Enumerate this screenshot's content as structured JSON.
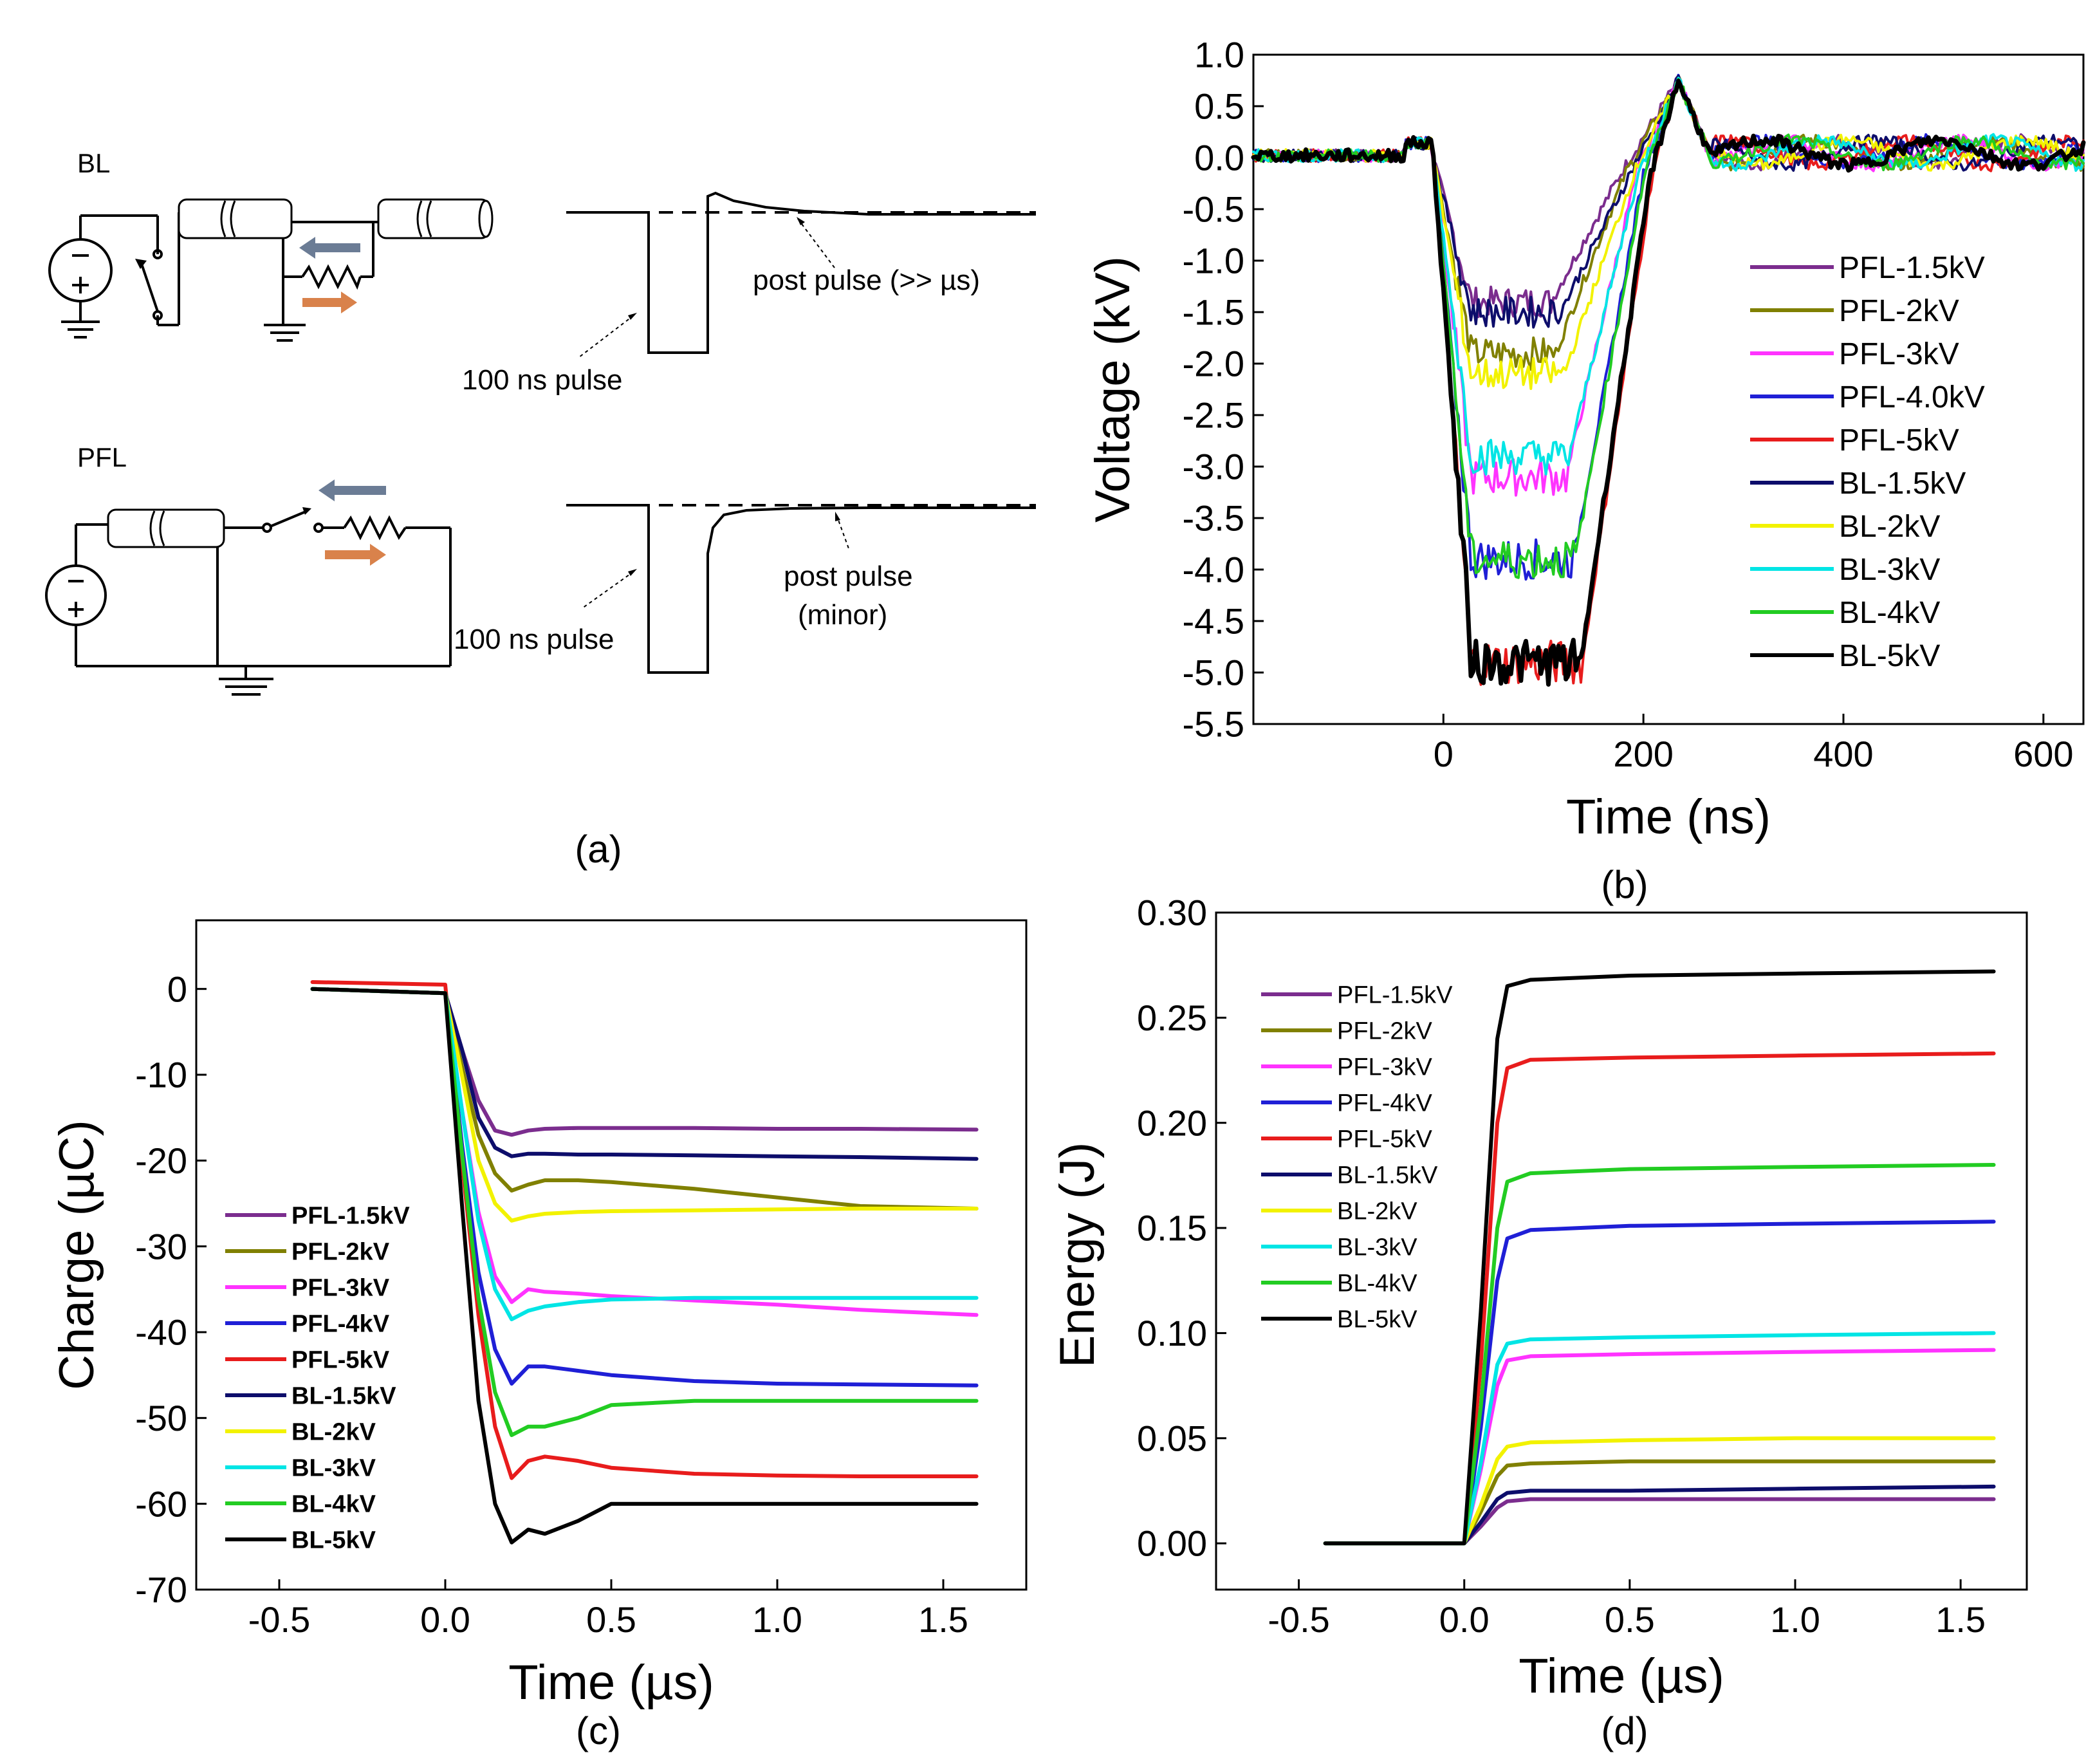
{
  "panel_a": {
    "label": "(a)",
    "bl_title": "BL",
    "pfl_title": "PFL",
    "bl_pulse_label": "100 ns pulse",
    "bl_post_label": "post pulse (>> µs)",
    "pfl_pulse_label": "100 ns pulse",
    "pfl_post_label_1": "post pulse",
    "pfl_post_label_2": "(minor)",
    "arrow_colors": {
      "grey": "#6b7c95",
      "orange": "#d9824b"
    }
  },
  "chart_data": [
    {
      "panel": "(b)",
      "type": "line",
      "title": "",
      "xlabel": "Time (ns)",
      "ylabel": "Voltage (kV)",
      "xlim": [
        -190,
        640
      ],
      "ylim": [
        -5.5,
        1.0
      ],
      "xticks": [
        "0",
        "200",
        "400",
        "600"
      ],
      "yticks": [
        "1.0",
        "0.5",
        "0.0",
        "-0.5",
        "-1.0",
        "-1.5",
        "-2.0",
        "-2.5",
        "-3.0",
        "-3.5",
        "-4.0",
        "-4.5",
        "-5.0",
        "-5.5"
      ],
      "legend_position": "center-right",
      "series": [
        {
          "name": "PFL-1.5kV",
          "color": "#7b2d8e",
          "plateau": -1.4
        },
        {
          "name": "PFL-2kV",
          "color": "#808000",
          "plateau": -1.9
        },
        {
          "name": "PFL-3kV",
          "color": "#ff33ff",
          "plateau": -3.1
        },
        {
          "name": "PFL-4.0kV",
          "color": "#1f1fd6",
          "plateau": -3.9
        },
        {
          "name": "PFL-5kV",
          "color": "#e81c1c",
          "plateau": -4.9
        },
        {
          "name": "BL-1.5kV",
          "color": "#0d0d6b",
          "plateau": -1.5
        },
        {
          "name": "BL-2kV",
          "color": "#f2f200",
          "plateau": -2.1
        },
        {
          "name": "BL-3kV",
          "color": "#00e5e5",
          "plateau": -2.9
        },
        {
          "name": "BL-4kV",
          "color": "#22cc22",
          "plateau": -3.9
        },
        {
          "name": "BL-5kV",
          "color": "#000000",
          "plateau": -4.9
        }
      ]
    },
    {
      "panel": "(c)",
      "type": "line",
      "title": "",
      "xlabel": "Time (µs)",
      "ylabel": "Charge (µC)",
      "xlim": [
        -0.75,
        1.75
      ],
      "ylim": [
        -70,
        8
      ],
      "xticks": [
        "-0.5",
        "0.0",
        "0.5",
        "1.0",
        "1.5"
      ],
      "yticks": [
        "0",
        "-10",
        "-20",
        "-30",
        "-40",
        "-50",
        "-60",
        "-70"
      ],
      "legend_position": "center-left",
      "x": [
        -0.4,
        0.0,
        0.05,
        0.1,
        0.15,
        0.2,
        0.25,
        0.3,
        0.4,
        0.5,
        0.75,
        1.0,
        1.25,
        1.6
      ],
      "series": [
        {
          "name": "PFL-1.5kV",
          "color": "#7b2d8e",
          "values": [
            0,
            -0.5,
            -7,
            -13,
            -16.5,
            -17,
            -16.5,
            -16.3,
            -16.2,
            -16.2,
            -16.2,
            -16.3,
            -16.3,
            -16.4
          ]
        },
        {
          "name": "PFL-2kV",
          "color": "#808000",
          "values": [
            0,
            -0.5,
            -9,
            -17,
            -21.5,
            -23.5,
            -22.8,
            -22.3,
            -22.3,
            -22.5,
            -23.3,
            -24.3,
            -25.3,
            -25.6
          ]
        },
        {
          "name": "PFL-3kV",
          "color": "#ff33ff",
          "values": [
            0,
            -0.5,
            -14,
            -26,
            -33.5,
            -36.5,
            -35,
            -35.3,
            -35.5,
            -35.8,
            -36.3,
            -36.8,
            -37.4,
            -38
          ]
        },
        {
          "name": "PFL-4kV",
          "color": "#1f1fd6",
          "values": [
            0,
            -0.5,
            -18,
            -33,
            -42,
            -46,
            -44,
            -44,
            -44.5,
            -45,
            -45.7,
            -46,
            -46.1,
            -46.2
          ]
        },
        {
          "name": "PFL-5kV",
          "color": "#e81c1c",
          "values": [
            0.8,
            0.5,
            -20,
            -38,
            -51,
            -57,
            -55,
            -54.5,
            -55,
            -55.8,
            -56.5,
            -56.7,
            -56.8,
            -56.8
          ]
        },
        {
          "name": "BL-1.5kV",
          "color": "#0d0d6b",
          "values": [
            0,
            -0.5,
            -7,
            -15,
            -18.5,
            -19.5,
            -19.2,
            -19.2,
            -19.3,
            -19.3,
            -19.4,
            -19.5,
            -19.6,
            -19.8
          ]
        },
        {
          "name": "BL-2kV",
          "color": "#f2f200",
          "values": [
            0,
            -0.5,
            -10,
            -20,
            -25,
            -27,
            -26.5,
            -26.2,
            -26,
            -25.9,
            -25.8,
            -25.7,
            -25.6,
            -25.6
          ]
        },
        {
          "name": "BL-3kV",
          "color": "#00e5e5",
          "values": [
            0,
            -0.5,
            -14,
            -27,
            -35,
            -38.5,
            -37.5,
            -37,
            -36.5,
            -36.2,
            -36,
            -36,
            -36,
            -36
          ]
        },
        {
          "name": "BL-4kV",
          "color": "#22cc22",
          "values": [
            0,
            -0.5,
            -19,
            -36,
            -47,
            -52,
            -51,
            -51,
            -50,
            -48.5,
            -48,
            -48,
            -48,
            -48
          ]
        },
        {
          "name": "BL-5kV",
          "color": "#000000",
          "values": [
            0,
            -0.5,
            -25,
            -48,
            -60,
            -64.5,
            -63,
            -63.5,
            -62,
            -60,
            -60,
            -60,
            -60,
            -60
          ]
        }
      ]
    },
    {
      "panel": "(d)",
      "type": "line",
      "title": "",
      "xlabel": "Time (µs)",
      "ylabel": "Energy (J)",
      "xlim": [
        -0.75,
        1.7
      ],
      "ylim": [
        -0.022,
        0.3
      ],
      "xticks": [
        "-0.5",
        "0.0",
        "0.5",
        "1.0",
        "1.5"
      ],
      "yticks": [
        "0.30",
        "0.25",
        "0.20",
        "0.15",
        "0.10",
        "0.05",
        "0.00"
      ],
      "legend_position": "top-left",
      "x": [
        -0.42,
        0.0,
        0.05,
        0.1,
        0.13,
        0.2,
        0.5,
        1.0,
        1.6
      ],
      "series": [
        {
          "name": "PFL-1.5kV",
          "color": "#7b2d8e",
          "values": [
            0,
            0,
            0.008,
            0.017,
            0.02,
            0.021,
            0.021,
            0.021,
            0.021
          ]
        },
        {
          "name": "PFL-2kV",
          "color": "#808000",
          "values": [
            0,
            0,
            0.015,
            0.032,
            0.037,
            0.038,
            0.039,
            0.039,
            0.039
          ]
        },
        {
          "name": "PFL-3kV",
          "color": "#ff33ff",
          "values": [
            0,
            0,
            0.035,
            0.075,
            0.087,
            0.089,
            0.09,
            0.091,
            0.092
          ]
        },
        {
          "name": "PFL-4kV",
          "color": "#1f1fd6",
          "values": [
            0,
            0,
            0.055,
            0.125,
            0.145,
            0.149,
            0.151,
            0.152,
            0.153
          ]
        },
        {
          "name": "PFL-5kV",
          "color": "#e81c1c",
          "values": [
            0,
            0,
            0.085,
            0.2,
            0.226,
            0.23,
            0.231,
            0.232,
            0.233
          ]
        },
        {
          "name": "BL-1.5kV",
          "color": "#0d0d6b",
          "values": [
            0,
            0,
            0.01,
            0.021,
            0.024,
            0.025,
            0.025,
            0.026,
            0.027
          ]
        },
        {
          "name": "BL-2kV",
          "color": "#f2f200",
          "values": [
            0,
            0,
            0.018,
            0.04,
            0.046,
            0.048,
            0.049,
            0.05,
            0.05
          ]
        },
        {
          "name": "BL-3kV",
          "color": "#00e5e5",
          "values": [
            0,
            0,
            0.038,
            0.085,
            0.095,
            0.097,
            0.098,
            0.099,
            0.1
          ]
        },
        {
          "name": "BL-4kV",
          "color": "#22cc22",
          "values": [
            0,
            0,
            0.065,
            0.15,
            0.172,
            0.176,
            0.178,
            0.179,
            0.18
          ]
        },
        {
          "name": "BL-5kV",
          "color": "#000000",
          "values": [
            0,
            0,
            0.11,
            0.24,
            0.265,
            0.268,
            0.27,
            0.271,
            0.272
          ]
        }
      ]
    }
  ]
}
